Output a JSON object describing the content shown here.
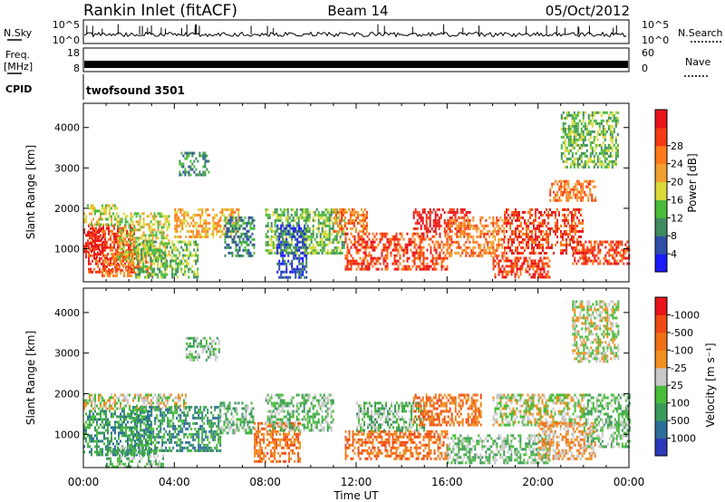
{
  "header": {
    "station": "Rankin Inlet (fitACF)",
    "beam": "Beam 14",
    "date": "05/Oct/2012"
  },
  "noise_panel": {
    "left_label": "N.Sky",
    "right_label": "N.Search",
    "left_ticks": [
      "10^5",
      "10^0"
    ],
    "right_ticks": [
      "10^5",
      "10^0"
    ]
  },
  "freq_panel": {
    "left_label_line1": "Freq.",
    "left_label_line2": "[MHz]",
    "right_label": "Nave",
    "left_ticks": [
      "18",
      "8"
    ],
    "right_ticks": [
      "60",
      "0"
    ]
  },
  "cpid_panel": {
    "label": "CPID",
    "value": "twofsound 3501"
  },
  "x_axis": {
    "title": "Time UT",
    "range_hours": [
      0,
      24
    ],
    "ticks": [
      {
        "hour": 0,
        "label": "00:00"
      },
      {
        "hour": 4,
        "label": "04:00"
      },
      {
        "hour": 8,
        "label": "08:00"
      },
      {
        "hour": 12,
        "label": "12:00"
      },
      {
        "hour": 16,
        "label": "16:00"
      },
      {
        "hour": 20,
        "label": "20:00"
      },
      {
        "hour": 24,
        "label": "00:00"
      }
    ]
  },
  "chart_data": [
    {
      "type": "heatmap",
      "name": "power",
      "xlabel": "Time UT",
      "ylabel": "Slant Range [km]",
      "xlim": [
        0,
        24
      ],
      "ylim": [
        180,
        4600
      ],
      "y_ticks": [
        1000,
        2000,
        3000,
        4000
      ],
      "colorbar": {
        "title": "Power [dB]",
        "ticks": [
          "4",
          "8",
          "12",
          "16",
          "20",
          "24",
          "28"
        ],
        "colors": [
          "#1a1aff",
          "#2d4fa8",
          "#3f8a5e",
          "#4bbb3c",
          "#d9d93a",
          "#f0a030",
          "#ff7a1a",
          "#f53a14",
          "#e8141a"
        ]
      },
      "echo_regions": [
        {
          "t": [
            0.2,
            2.2
          ],
          "r": [
            400,
            1600
          ],
          "level": 7
        },
        {
          "t": [
            0.8,
            3.0
          ],
          "r": [
            300,
            900
          ],
          "level": 6
        },
        {
          "t": [
            0.0,
            1.5
          ],
          "r": [
            1600,
            2100
          ],
          "level": 4
        },
        {
          "t": [
            1.5,
            3.8
          ],
          "r": [
            700,
            1900
          ],
          "level": 4
        },
        {
          "t": [
            2.2,
            5.0
          ],
          "r": [
            300,
            1200
          ],
          "level": 3
        },
        {
          "t": [
            4.0,
            6.8
          ],
          "r": [
            1300,
            2000
          ],
          "level": 5
        },
        {
          "t": [
            4.2,
            5.5
          ],
          "r": [
            2800,
            3400
          ],
          "level": 2
        },
        {
          "t": [
            6.2,
            7.5
          ],
          "r": [
            800,
            1800
          ],
          "level": 2
        },
        {
          "t": [
            8.0,
            11.5
          ],
          "r": [
            900,
            2000
          ],
          "level": 3
        },
        {
          "t": [
            8.5,
            9.8
          ],
          "r": [
            300,
            1600
          ],
          "level": 1
        },
        {
          "t": [
            11.0,
            12.5
          ],
          "r": [
            1400,
            2000
          ],
          "level": 6
        },
        {
          "t": [
            11.5,
            16.0
          ],
          "r": [
            500,
            1400
          ],
          "level": 7
        },
        {
          "t": [
            14.5,
            17.0
          ],
          "r": [
            1400,
            2000
          ],
          "level": 8
        },
        {
          "t": [
            16.0,
            18.5
          ],
          "r": [
            800,
            1800
          ],
          "level": 6
        },
        {
          "t": [
            18.5,
            22.0
          ],
          "r": [
            900,
            2000
          ],
          "level": 7
        },
        {
          "t": [
            18.0,
            20.5
          ],
          "r": [
            300,
            800
          ],
          "level": 7
        },
        {
          "t": [
            21.5,
            24.0
          ],
          "r": [
            600,
            1200
          ],
          "level": 7
        },
        {
          "t": [
            20.5,
            22.5
          ],
          "r": [
            2200,
            2700
          ],
          "level": 6
        },
        {
          "t": [
            21.0,
            23.5
          ],
          "r": [
            3000,
            4400
          ],
          "level": 3
        },
        {
          "t": [
            0.0,
            0.8
          ],
          "r": [
            800,
            1500
          ],
          "level": 8
        }
      ]
    },
    {
      "type": "heatmap",
      "name": "velocity",
      "xlabel": "Time UT",
      "ylabel": "Slant Range [km]",
      "xlim": [
        0,
        24
      ],
      "ylim": [
        180,
        4600
      ],
      "y_ticks": [
        1000,
        2000,
        3000,
        4000
      ],
      "colorbar": {
        "title": "Velocity [m s⁻¹]",
        "ticks": [
          "1000",
          "500",
          "100",
          "25",
          "-25",
          "-100",
          "-500",
          "-1000"
        ],
        "colors": [
          "#2a3ab8",
          "#2d6f9a",
          "#3a9a5a",
          "#4abc3a",
          "#c8c8c8",
          "#f09020",
          "#f07018",
          "#f04a14",
          "#e8141a"
        ]
      },
      "echo_regions": [
        {
          "t": [
            0.0,
            3.0
          ],
          "r": [
            500,
            1600
          ],
          "level": 2
        },
        {
          "t": [
            0.0,
            4.5
          ],
          "r": [
            1600,
            2000
          ],
          "level": 4
        },
        {
          "t": [
            1.0,
            3.5
          ],
          "r": [
            200,
            700
          ],
          "level": 3
        },
        {
          "t": [
            2.0,
            6.0
          ],
          "r": [
            600,
            1700
          ],
          "level": 2
        },
        {
          "t": [
            4.5,
            6.0
          ],
          "r": [
            2800,
            3400
          ],
          "level": 3
        },
        {
          "t": [
            6.0,
            7.5
          ],
          "r": [
            1000,
            1800
          ],
          "level": 3
        },
        {
          "t": [
            7.5,
            9.5
          ],
          "r": [
            300,
            1300
          ],
          "level": 6
        },
        {
          "t": [
            8.0,
            11.0
          ],
          "r": [
            1100,
            2000
          ],
          "level": 3
        },
        {
          "t": [
            11.5,
            16.0
          ],
          "r": [
            400,
            1100
          ],
          "level": 6
        },
        {
          "t": [
            12.0,
            15.0
          ],
          "r": [
            1100,
            1800
          ],
          "level": 3
        },
        {
          "t": [
            14.5,
            17.5
          ],
          "r": [
            1200,
            2000
          ],
          "level": 6
        },
        {
          "t": [
            16.0,
            20.5
          ],
          "r": [
            300,
            1000
          ],
          "level": 3
        },
        {
          "t": [
            18.0,
            22.0
          ],
          "r": [
            1200,
            2000
          ],
          "level": 4
        },
        {
          "t": [
            20.0,
            22.5
          ],
          "r": [
            400,
            1300
          ],
          "level": 5
        },
        {
          "t": [
            22.0,
            24.0
          ],
          "r": [
            700,
            2000
          ],
          "level": 3
        },
        {
          "t": [
            21.5,
            23.5
          ],
          "r": [
            2800,
            4300
          ],
          "level": 4
        }
      ]
    }
  ]
}
